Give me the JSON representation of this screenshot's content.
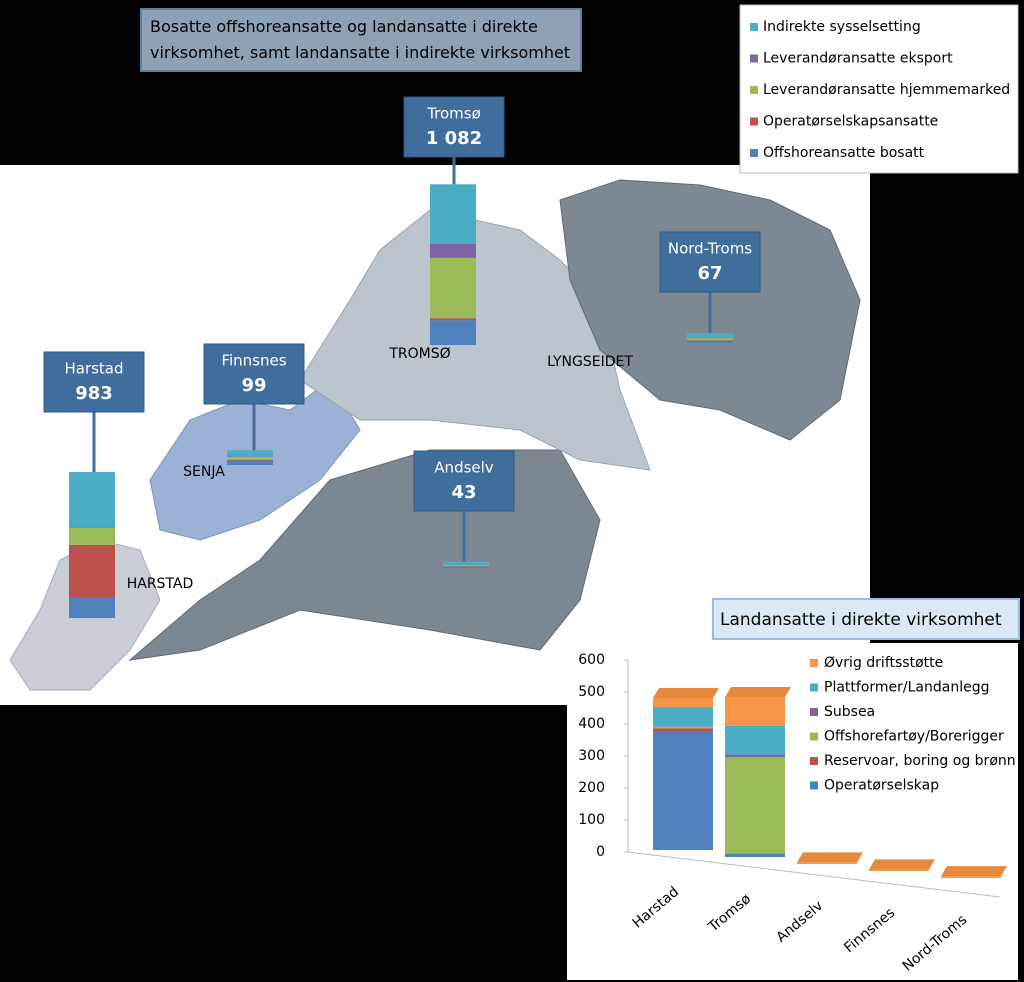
{
  "chart_data": [
    {
      "type": "map-stacked-bar",
      "title": "Bosatte offshoreansatte og landansatte i direkte virksomhet, samt landansatte i indirekte virksomhet",
      "annotations": [
        "TROMSØ",
        "LYNGSEIDET",
        "SENJA",
        "HARSTAD"
      ],
      "categories": [
        "Harstad",
        "Tromsø",
        "Finnsnes",
        "Andselv",
        "Nord-Troms"
      ],
      "totals": [
        983,
        1082,
        99,
        43,
        67
      ],
      "total_labels": [
        "983",
        "1 082",
        "99",
        "43",
        "67"
      ],
      "series": [
        {
          "name": "Offshoreansatte bosatt",
          "color": "#4f81bd",
          "values": [
            135,
            167,
            30,
            10,
            15
          ]
        },
        {
          "name": "Operatørselskapsansatte",
          "color": "#c0504d",
          "values": [
            357,
            13,
            5,
            2,
            3
          ]
        },
        {
          "name": "Leverandøransatte hjemmemarked",
          "color": "#9bbb59",
          "values": [
            114,
            407,
            20,
            10,
            15
          ]
        },
        {
          "name": "Leverandøransatte eksport",
          "color": "#8064a2",
          "values": [
            5,
            94,
            2,
            1,
            2
          ]
        },
        {
          "name": "Indirekte sysselsetting",
          "color": "#4bacc6",
          "values": [
            372,
            401,
            42,
            20,
            32
          ]
        }
      ]
    },
    {
      "type": "bar-stacked",
      "title": "Landansatte i direkte virksomhet",
      "categories": [
        "Harstad",
        "Tromsø",
        "Andselv",
        "Finnsnes",
        "Nord-Troms"
      ],
      "ylim": [
        0,
        600
      ],
      "yticks": [
        0,
        100,
        200,
        300,
        400,
        500,
        600
      ],
      "grid": false,
      "series": [
        {
          "name": "Operatørselskap",
          "color": "#4f81bd",
          "values": [
            370,
            10,
            0,
            0,
            1
          ]
        },
        {
          "name": "Reservoar, boring og brønn",
          "color": "#c0504d",
          "values": [
            10,
            2,
            0,
            0,
            0
          ]
        },
        {
          "name": "Offshorefartøy/Borerigger",
          "color": "#9bbb59",
          "values": [
            5,
            300,
            0,
            0,
            0
          ]
        },
        {
          "name": "Subsea",
          "color": "#8064a2",
          "values": [
            2,
            8,
            0,
            0,
            0
          ]
        },
        {
          "name": "Plattformer/Landanlegg",
          "color": "#4bacc6",
          "values": [
            60,
            90,
            0,
            0,
            0
          ]
        },
        {
          "name": "Øvrig driftsstøtte",
          "color": "#f79646",
          "values": [
            28,
            90,
            5,
            5,
            5
          ]
        }
      ]
    }
  ]
}
